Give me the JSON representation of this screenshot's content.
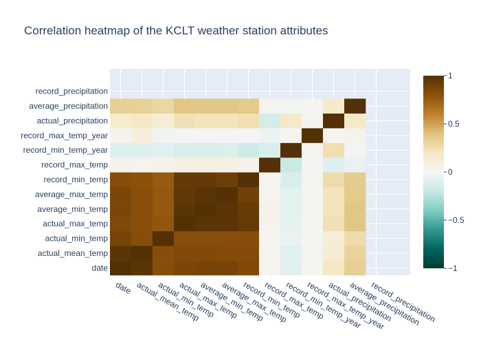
{
  "chart_data": {
    "type": "heatmap",
    "title": "Correlation heatmap of the KCLT weather station attributes",
    "x_categories": [
      "date",
      "actual_mean_temp",
      "actual_min_temp",
      "actual_max_temp",
      "average_min_temp",
      "average_max_temp",
      "record_min_temp",
      "record_max_temp",
      "record_min_temp_year",
      "record_max_temp_year",
      "actual_precipitation",
      "average_precipitation",
      "record_precipitation"
    ],
    "y_categories": [
      "date",
      "actual_mean_temp",
      "actual_min_temp",
      "actual_max_temp",
      "average_min_temp",
      "average_max_temp",
      "record_min_temp",
      "record_max_temp",
      "record_min_temp_year",
      "record_max_temp_year",
      "actual_precipitation",
      "average_precipitation",
      "record_precipitation"
    ],
    "z": [
      [
        1.0,
        0.97,
        0.82,
        0.86,
        0.87,
        0.87,
        0.84,
        0.02,
        -0.09,
        0.02,
        0.2,
        0.33,
        null
      ],
      [
        0.97,
        1.0,
        0.82,
        0.84,
        0.84,
        0.83,
        0.83,
        0.03,
        -0.09,
        0.03,
        0.14,
        0.31,
        null
      ],
      [
        0.88,
        0.82,
        1.0,
        0.82,
        0.82,
        0.82,
        0.82,
        0.03,
        -0.05,
        0.01,
        0.12,
        0.27,
        null
      ],
      [
        0.85,
        0.81,
        0.78,
        1.0,
        0.97,
        0.97,
        0.94,
        0.03,
        -0.07,
        0.02,
        0.24,
        0.38,
        null
      ],
      [
        0.86,
        0.81,
        0.77,
        0.97,
        1.0,
        0.98,
        0.93,
        0.04,
        -0.08,
        0.02,
        0.22,
        0.37,
        null
      ],
      [
        0.86,
        0.81,
        0.77,
        0.95,
        0.98,
        1.0,
        0.9,
        0.03,
        -0.08,
        0.02,
        0.22,
        0.36,
        null
      ],
      [
        0.82,
        0.8,
        0.76,
        0.94,
        0.94,
        0.91,
        1.0,
        0.03,
        -0.12,
        0.02,
        0.27,
        0.35,
        null
      ],
      [
        0.04,
        0.03,
        0.05,
        0.08,
        0.08,
        0.07,
        0.05,
        1.0,
        -0.2,
        0.01,
        -0.1,
        -0.05,
        null
      ],
      [
        -0.1,
        -0.1,
        -0.09,
        -0.12,
        -0.13,
        -0.11,
        -0.17,
        -0.13,
        1.0,
        0.02,
        0.25,
        -0.02,
        null
      ],
      [
        0.03,
        0.1,
        -0.03,
        -0.01,
        -0.01,
        -0.01,
        -0.01,
        -0.04,
        0.02,
        1.0,
        0.02,
        0.03,
        null
      ],
      [
        0.16,
        0.2,
        0.12,
        0.24,
        0.22,
        0.22,
        0.25,
        -0.15,
        0.18,
        0.03,
        1.0,
        0.18,
        null
      ],
      [
        0.33,
        0.32,
        0.29,
        0.38,
        0.37,
        0.37,
        0.36,
        0.03,
        -0.02,
        0.02,
        0.17,
        1.0,
        null
      ],
      [
        null,
        null,
        null,
        null,
        null,
        null,
        null,
        null,
        null,
        null,
        null,
        null,
        null
      ]
    ],
    "zmin": -1,
    "zmax": 1,
    "colorscale": "BrBG",
    "colorbar_ticks": [
      1,
      0.5,
      0,
      -0.5,
      -1
    ],
    "colorbar_tick_labels": [
      "1",
      "0.5",
      "0",
      "−0.5",
      "−1"
    ],
    "plot_bg": "#e5ecf6",
    "grid": true
  }
}
